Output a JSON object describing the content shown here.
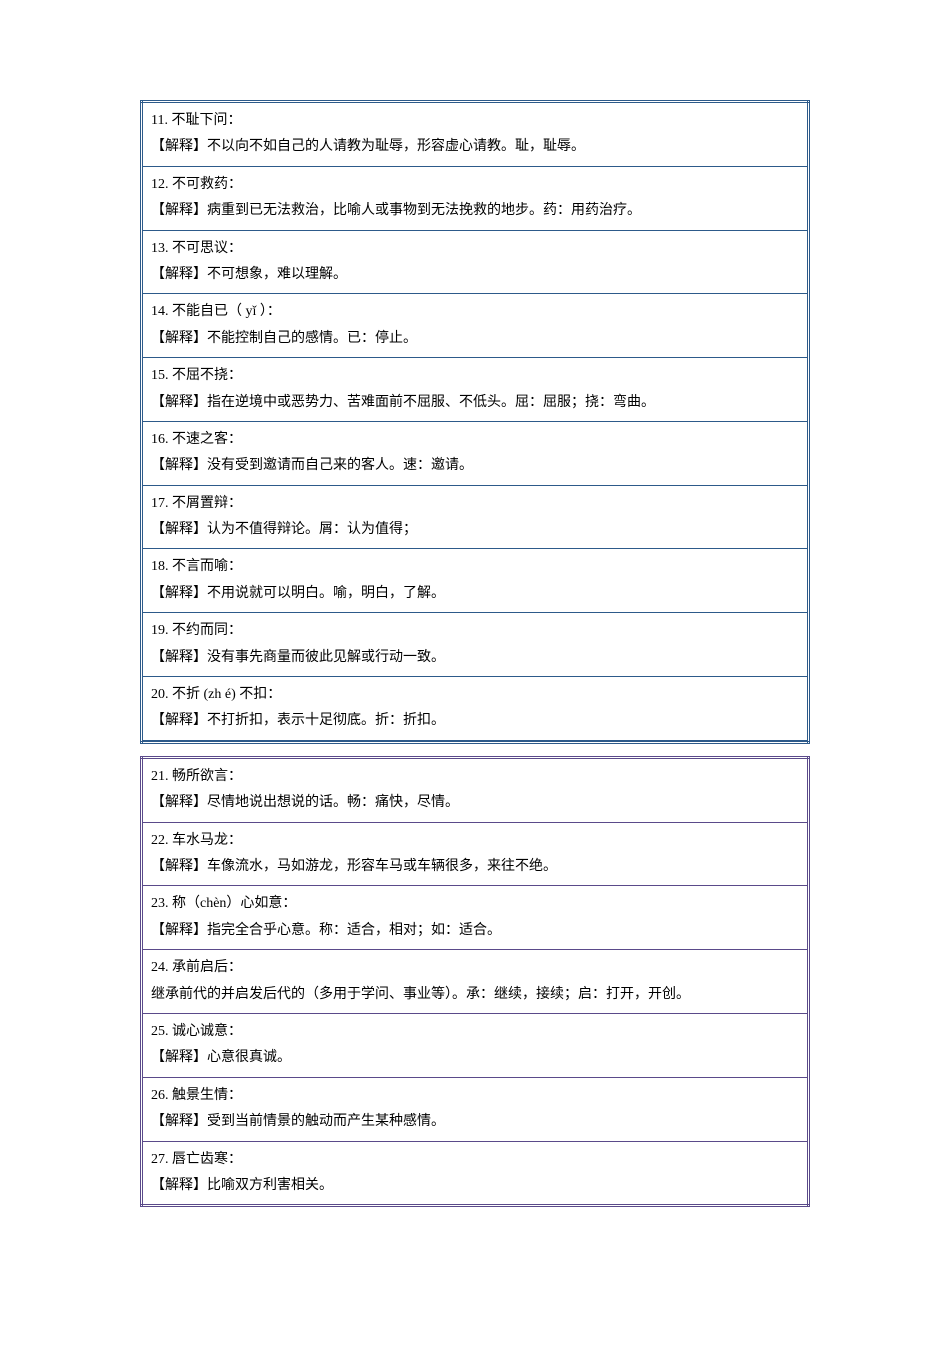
{
  "tables": [
    {
      "colorClass": "blue",
      "borderColor": "#2d5a8a",
      "entries": [
        {
          "idiom": "11. 不耻下问：",
          "explanation": "【解释】不以向不如自己的人请教为耻辱，形容虚心请教。耻，耻辱。"
        },
        {
          "idiom": "12. 不可救药：",
          "explanation": "【解释】病重到已无法救治，比喻人或事物到无法挽救的地步。药：用药治疗。"
        },
        {
          "idiom": "13. 不可思议：",
          "explanation": "【解释】不可想象，难以理解。"
        },
        {
          "idiom": "14. 不能自已（ yǐ ）：",
          "explanation": "【解释】不能控制自己的感情。已：停止。"
        },
        {
          "idiom": "15. 不屈不挠：",
          "explanation": "【解释】指在逆境中或恶势力、苦难面前不屈服、不低头。屈：屈服；挠：弯曲。"
        },
        {
          "idiom": "16. 不速之客：",
          "explanation": "【解释】没有受到邀请而自己来的客人。速：邀请。"
        },
        {
          "idiom": "17. 不屑置辩：",
          "explanation": "【解释】认为不值得辩论。屑：认为值得；"
        },
        {
          "idiom": "18. 不言而喻：",
          "explanation": "【解释】不用说就可以明白。喻，明白，了解。"
        },
        {
          "idiom": "19. 不约而同：",
          "explanation": "【解释】没有事先商量而彼此见解或行动一致。"
        },
        {
          "idiom": "20. 不折 (zh é) 不扣：",
          "explanation": "【解释】不打折扣，表示十足彻底。折：折扣。"
        }
      ],
      "hasSpacerRow": true
    },
    {
      "colorClass": "purple",
      "borderColor": "#5a4a8a",
      "entries": [
        {
          "idiom": "21. 畅所欲言：",
          "explanation": "【解释】尽情地说出想说的话。畅：痛快，尽情。"
        },
        {
          "idiom": "22. 车水马龙：",
          "explanation": "【解释】车像流水，马如游龙，形容车马或车辆很多，来往不绝。"
        },
        {
          "idiom": "23. 称（chèn）心如意：",
          "explanation": "【解释】指完全合乎心意。称：适合，相对；如：适合。"
        },
        {
          "idiom": "24. 承前启后：",
          "explanation": "继承前代的并启发后代的（多用于学问、事业等）。承：继续，接续；启：打开，开创。"
        },
        {
          "idiom": "25. 诚心诚意：",
          "explanation": "【解释】心意很真诚。"
        },
        {
          "idiom": "26. 触景生情：",
          "explanation": "【解释】受到当前情景的触动而产生某种感情。"
        },
        {
          "idiom": "27. 唇亡齿寒：",
          "explanation": "【解释】比喻双方利害相关。"
        }
      ],
      "hasSpacerRow": false
    }
  ]
}
